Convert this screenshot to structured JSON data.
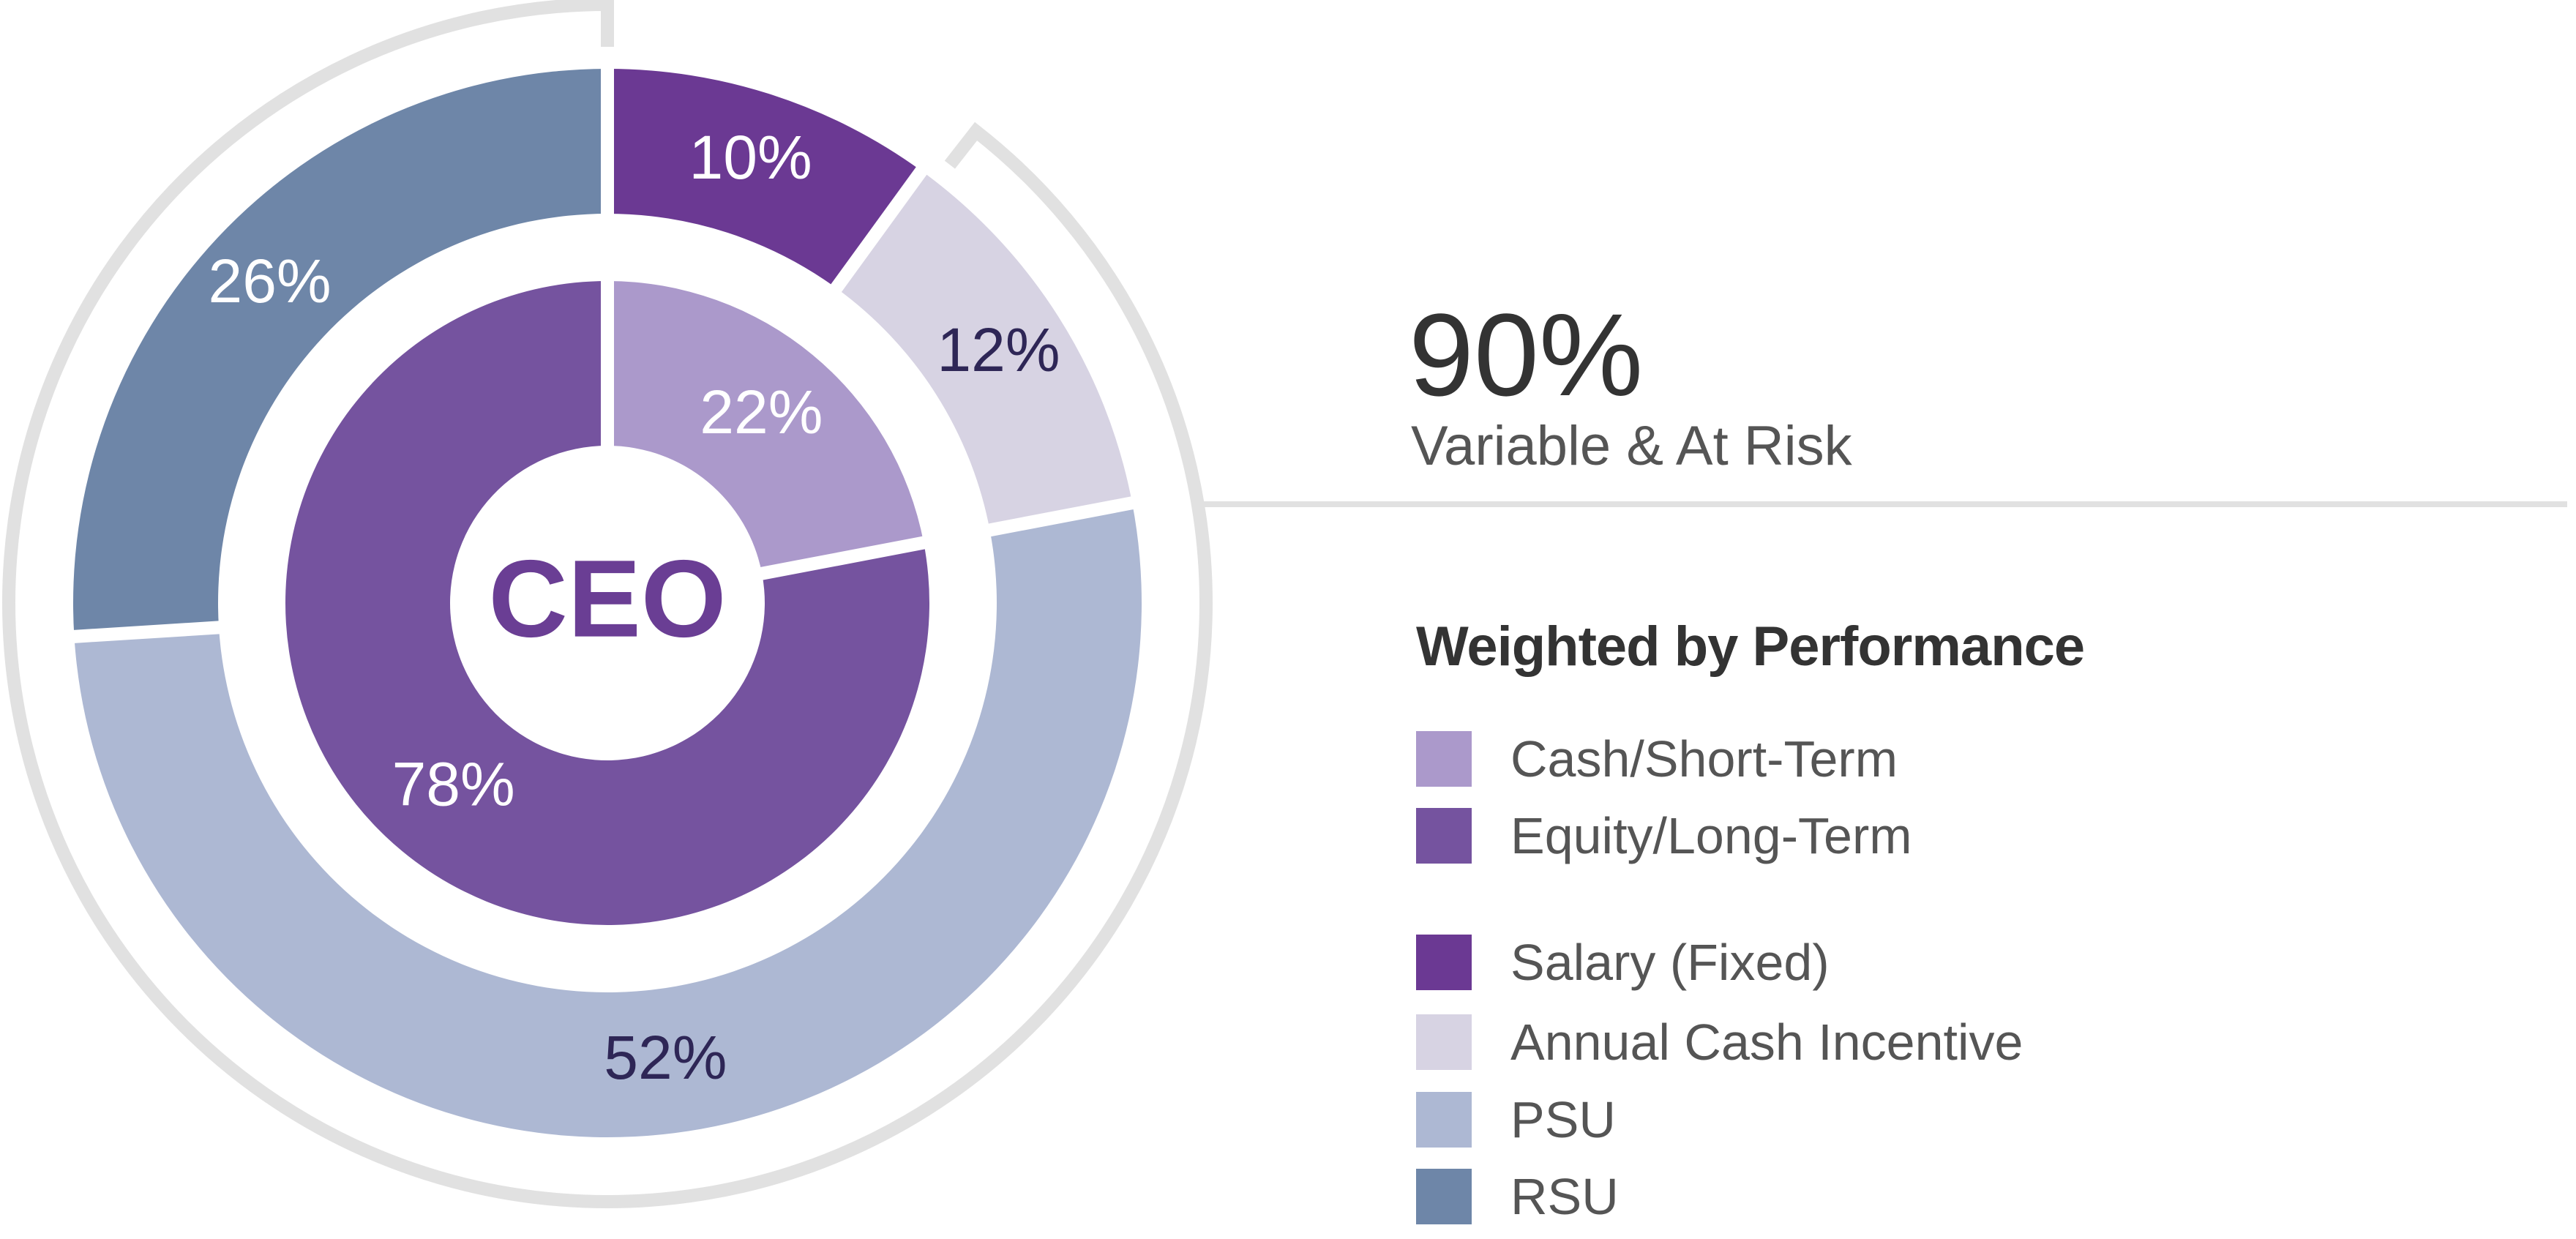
{
  "chart_data": {
    "type": "pie",
    "center_label": "CEO",
    "headline": {
      "value": "90%",
      "caption": "Variable & At Risk"
    },
    "legend_title": "Weighted by Performance",
    "rings": [
      {
        "name": "inner",
        "slices": [
          {
            "name": "Cash/Short-Term",
            "value": 22,
            "label": "22%",
            "color": "#AB99CB",
            "label_color": "#FFFFFF"
          },
          {
            "name": "Equity/Long-Term",
            "value": 78,
            "label": "78%",
            "color": "#75539F",
            "label_color": "#FFFFFF"
          }
        ]
      },
      {
        "name": "outer",
        "slices": [
          {
            "name": "Salary (Fixed)",
            "value": 10,
            "label": "10%",
            "color": "#6B3993",
            "label_color": "#FFFFFF"
          },
          {
            "name": "Annual Cash Incentive",
            "value": 12,
            "label": "12%",
            "color": "#D7D3E3",
            "label_color": "#2E2656"
          },
          {
            "name": "PSU",
            "value": 52,
            "label": "52%",
            "color": "#ADB8D3",
            "label_color": "#2E2656"
          },
          {
            "name": "RSU",
            "value": 26,
            "label": "26%",
            "color": "#6E86A8",
            "label_color": "#FFFFFF"
          }
        ]
      }
    ],
    "variable_bracket": {
      "covers": [
        "Annual Cash Incentive",
        "PSU",
        "RSU"
      ],
      "value": 90,
      "color": "#E1E1E1"
    }
  },
  "legend": {
    "groups": [
      [
        {
          "label": "Cash/Short-Term",
          "color": "#AB99CB"
        },
        {
          "label": "Equity/Long-Term",
          "color": "#75539F"
        }
      ],
      [
        {
          "label": "Salary (Fixed)",
          "color": "#6B3993"
        },
        {
          "label": "Annual Cash Incentive",
          "color": "#D7D3E3"
        },
        {
          "label": "PSU",
          "color": "#ADB8D3"
        },
        {
          "label": "RSU",
          "color": "#6E86A8"
        }
      ]
    ]
  },
  "colors": {
    "center_text": "#6A3E94",
    "bracket": "#E1E1E1",
    "connector": "#E1E1E1"
  }
}
